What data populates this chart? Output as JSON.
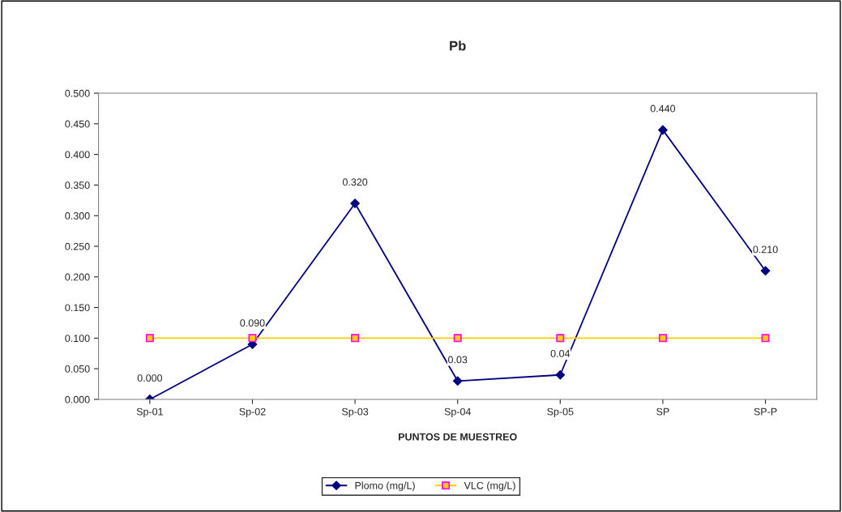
{
  "chart_data": {
    "type": "line",
    "title": "Pb",
    "xlabel": "PUNTOS DE MUESTREO",
    "categories": [
      "Sp-01",
      "Sp-02",
      "Sp-03",
      "Sp-04",
      "Sp-05",
      "SP",
      "SP-P"
    ],
    "series": [
      {
        "name": "Plomo (mg/L)",
        "color": "#000080",
        "marker": "diamond",
        "values": [
          0.0,
          0.09,
          0.32,
          0.03,
          0.04,
          0.44,
          0.21
        ],
        "value_labels": [
          "0.000",
          "0.090",
          "0.320",
          "0.03",
          "0.04",
          "0.440",
          "0.210"
        ]
      },
      {
        "name": "VLC (mg/L)",
        "color": "#ffcc00",
        "marker": "square",
        "values": [
          0.1,
          0.1,
          0.1,
          0.1,
          0.1,
          0.1,
          0.1
        ]
      }
    ],
    "ylim": [
      0,
      0.5
    ],
    "yticks": [
      {
        "value": 0,
        "label": "0.000"
      },
      {
        "value": 0.05,
        "label": "0.050"
      },
      {
        "value": 0.1,
        "label": "0.100"
      },
      {
        "value": 0.15,
        "label": "0.150"
      },
      {
        "value": 0.2,
        "label": "0.200"
      },
      {
        "value": 0.25,
        "label": "0.250"
      },
      {
        "value": 0.3,
        "label": "0.300"
      },
      {
        "value": 0.35,
        "label": "0.350"
      },
      {
        "value": 0.4,
        "label": "0.400"
      },
      {
        "value": 0.45,
        "label": "0.450"
      },
      {
        "value": 0.5,
        "label": "0.500"
      }
    ],
    "grid": false,
    "legend": "bottom"
  }
}
